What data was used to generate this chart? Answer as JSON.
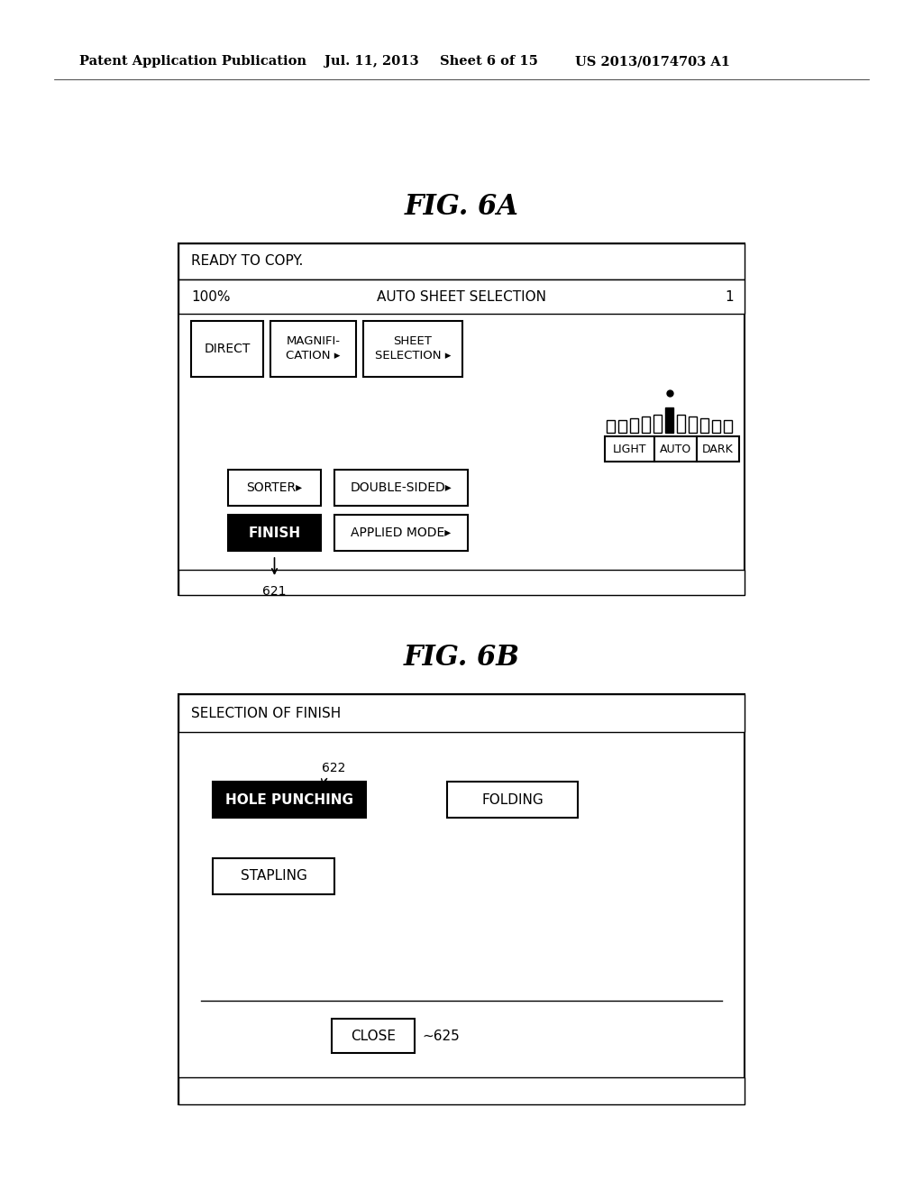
{
  "bg_color": "#ffffff",
  "header_text": "Patent Application Publication",
  "header_date": "Jul. 11, 2013",
  "header_sheet": "Sheet 6 of 15",
  "header_patent": "US 2013/0174703 A1",
  "fig6a_title": "FIG. 6A",
  "fig6b_title": "FIG. 6B",
  "fig6a": {
    "row1_text": "READY TO COPY.",
    "row2_left": "100%",
    "row2_center": "AUTO SHEET SELECTION",
    "row2_right": "1",
    "btn_direct": "DIRECT",
    "btn_magnifi_line1": "MAGNIFI-",
    "btn_magnifi_line2": "CATION",
    "btn_sheet_line1": "SHEET",
    "btn_sheet_line2": "SELECTION",
    "btn_light": "LIGHT",
    "btn_auto": "AUTO",
    "btn_dark": "DARK",
    "btn_sorter": "SORTER",
    "btn_double": "DOUBLE-SIDED",
    "btn_finish": "FINISH",
    "btn_applied": "APPLIED MODE",
    "label_621": "621"
  },
  "fig6b": {
    "title_text": "SELECTION OF FINISH",
    "label_622": "622",
    "btn_hole": "HOLE PUNCHING",
    "btn_folding": "FOLDING",
    "btn_stapling": "STAPLING",
    "btn_close": "CLOSE",
    "label_625": "625"
  }
}
